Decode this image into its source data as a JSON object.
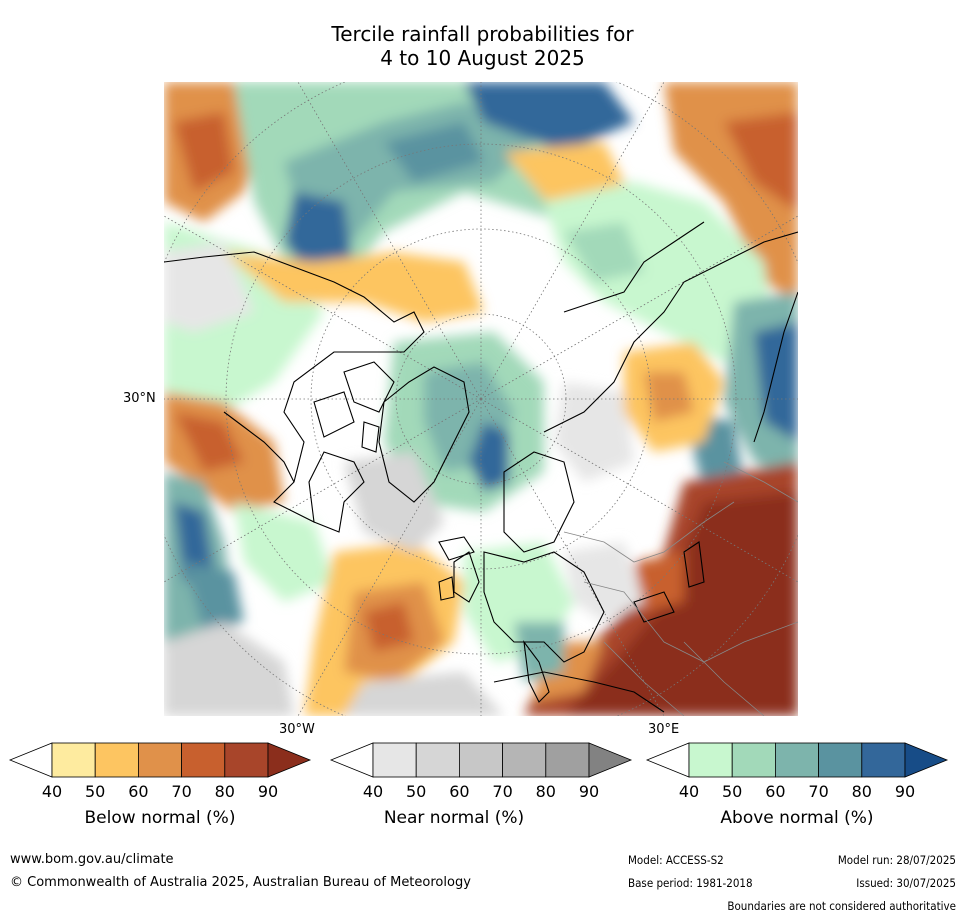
{
  "title": {
    "line1": "Tercile rainfall probabilities for",
    "line2": "4 to 10 August 2025"
  },
  "map": {
    "projection": "north-polar-stereographic",
    "lat_label": "30°N",
    "lon_labels": [
      "30°W",
      "30°E"
    ],
    "features": [
      "coastlines",
      "country-boundaries",
      "graticule"
    ]
  },
  "colorbars": [
    {
      "name": "below",
      "label": "Below normal (%)",
      "ticks": [
        "40",
        "50",
        "60",
        "70",
        "80",
        "90"
      ],
      "colors": [
        "#ffffff",
        "#feeb9f",
        "#fdc561",
        "#e0914a",
        "#c8602e",
        "#a8452a",
        "#8b2e1c"
      ]
    },
    {
      "name": "near",
      "label": "Near normal (%)",
      "ticks": [
        "40",
        "50",
        "60",
        "70",
        "80",
        "90"
      ],
      "colors": [
        "#ffffff",
        "#e6e6e6",
        "#d6d6d6",
        "#c7c7c7",
        "#b5b5b5",
        "#a0a0a0",
        "#828282"
      ]
    },
    {
      "name": "above",
      "label": "Above normal (%)",
      "ticks": [
        "40",
        "50",
        "60",
        "70",
        "80",
        "90"
      ],
      "colors": [
        "#ffffff",
        "#c8f7cf",
        "#a2d9b9",
        "#7db4ac",
        "#5a93a0",
        "#33679a",
        "#174c87"
      ]
    }
  ],
  "footer": {
    "url": "www.bom.gov.au/climate",
    "copyright": "© Commonwealth of Australia 2025, Australian Bureau of Meteorology",
    "model": "Model: ACCESS-S2",
    "model_run": "Model run: 28/07/2025",
    "base_period": "Base period: 1981-2018",
    "issued": "Issued: 30/07/2025",
    "disclaimer": "Boundaries are not considered authoritative"
  }
}
